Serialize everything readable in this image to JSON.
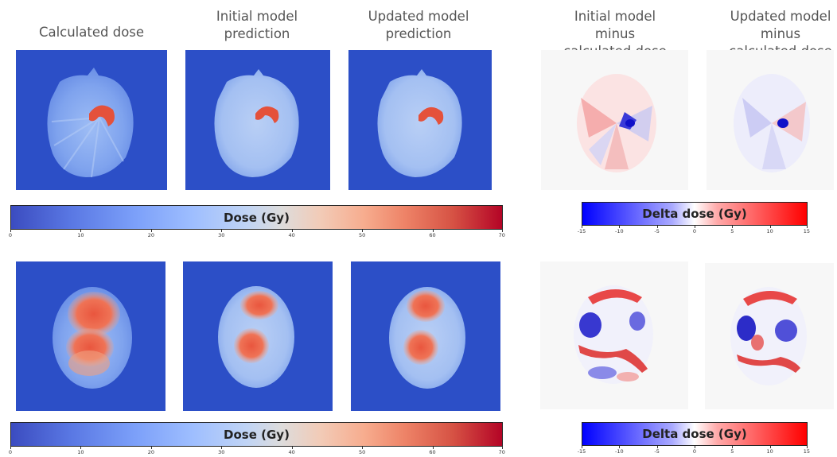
{
  "column_headers": {
    "calculated": "Calculated dose",
    "initial": "Initial model\nprediction",
    "updated": "Updated model\nprediction",
    "initial_minus": "Initial model\nminus\ncalculated dose",
    "updated_minus": "Updated model\nminus\ncalculated dose"
  },
  "colorbars": {
    "dose": {
      "label": "Dose (Gy)",
      "ticks": [
        "0",
        "10",
        "20",
        "30",
        "40",
        "50",
        "60",
        "70"
      ],
      "colormap": "coolwarm",
      "range": [
        0,
        70
      ]
    },
    "delta": {
      "label": "Delta dose (Gy)",
      "ticks": [
        "-15",
        "-10",
        "-5",
        "0",
        "5",
        "10",
        "15"
      ],
      "colormap": "bwr",
      "range": [
        -15,
        15
      ]
    }
  },
  "colors": {
    "dose_background": "#2c4fc7",
    "delta_background": "#f7f7f7"
  }
}
